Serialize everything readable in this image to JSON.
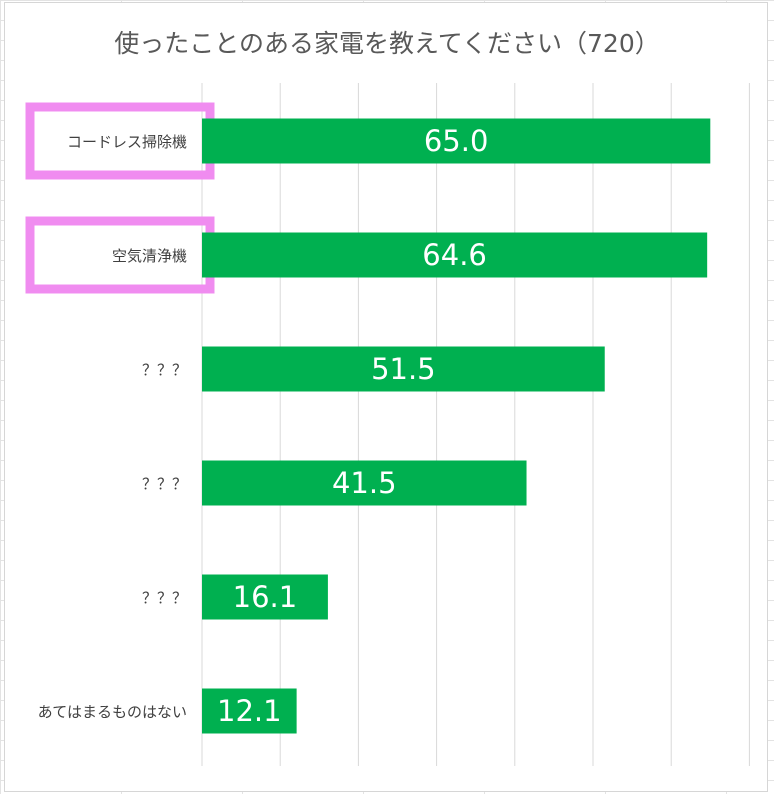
{
  "chart_data": {
    "type": "bar",
    "orientation": "horizontal",
    "title": "使ったことのある家電を教えてください（720）",
    "categories": [
      "コードレス掃除機",
      "空気清浄機",
      "？？？",
      "？？？",
      "？？？",
      "あてはまるものはない"
    ],
    "values": [
      65.0,
      64.6,
      51.5,
      41.5,
      16.1,
      12.1
    ],
    "value_labels": [
      "65.0",
      "64.6",
      "51.5",
      "41.5",
      "16.1",
      "12.1"
    ],
    "highlighted": [
      true,
      true,
      false,
      false,
      false,
      false
    ],
    "xlim": [
      0,
      70
    ],
    "grid": true,
    "legend": "none",
    "colors": {
      "bar": "#00b050",
      "grid": "#d9d9d9",
      "highlight": "#f08cf0",
      "label": "#404040",
      "title": "#595959"
    }
  }
}
